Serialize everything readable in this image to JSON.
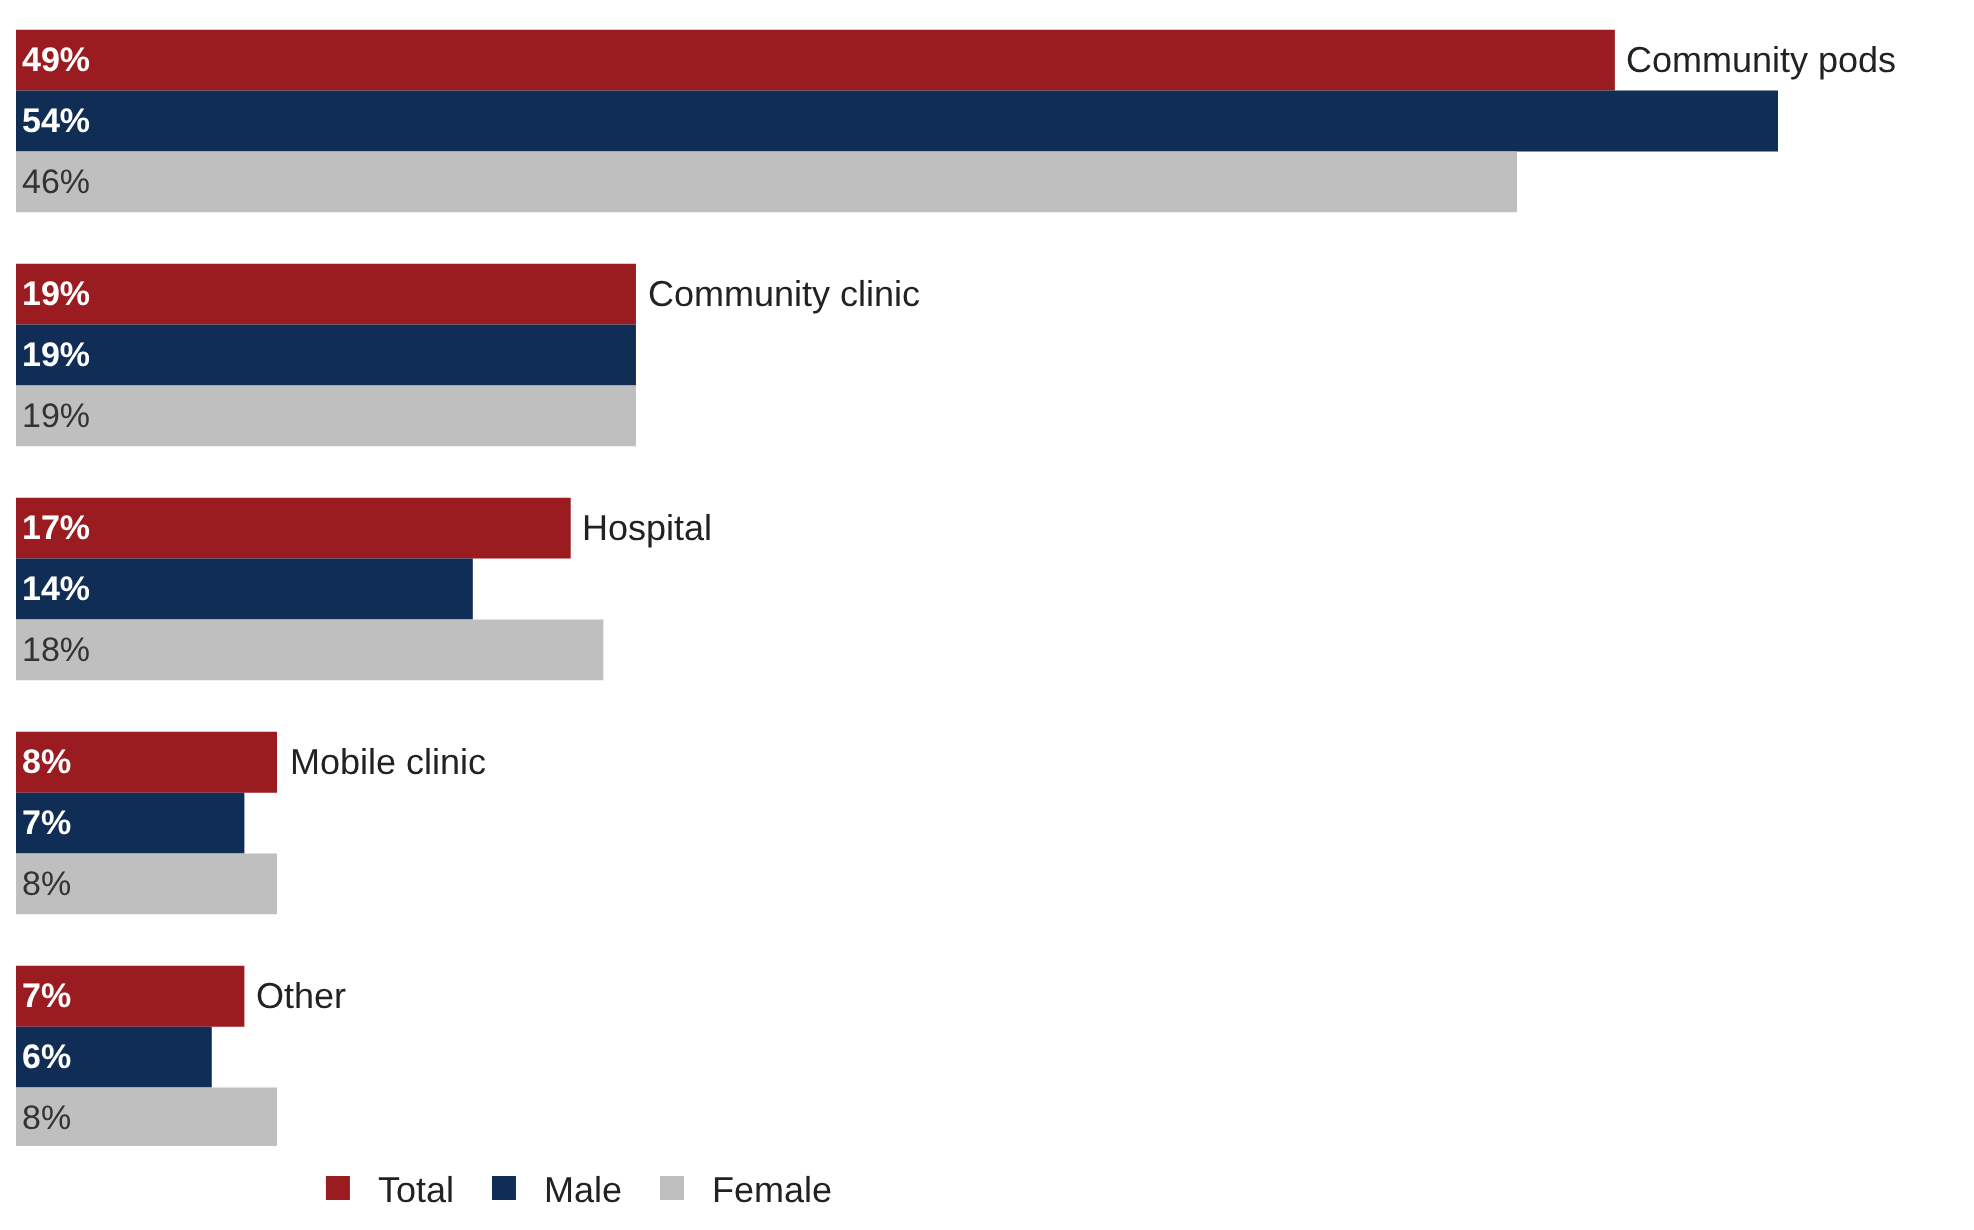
{
  "chart_data": {
    "type": "bar",
    "orientation": "horizontal",
    "categories": [
      "Community pods",
      "Community clinic",
      "Hospital",
      "Mobile clinic",
      "Other"
    ],
    "series": [
      {
        "name": "Total",
        "color": "#9b1c20",
        "values": [
          49,
          19,
          17,
          8,
          7
        ],
        "value_labels": [
          "49%",
          "19%",
          "17%",
          "8%",
          "7%"
        ]
      },
      {
        "name": "Male",
        "color": "#0f2d55",
        "values": [
          54,
          19,
          14,
          7,
          6
        ],
        "value_labels": [
          "54%",
          "19%",
          "14%",
          "7%",
          "6%"
        ]
      },
      {
        "name": "Female",
        "color": "#bfbfbf",
        "values": [
          46,
          19,
          18,
          8,
          8
        ],
        "value_labels": [
          "46%",
          "19%",
          "18%",
          "8%",
          "8%"
        ]
      }
    ],
    "legend": "bottom",
    "tick_labels": false
  }
}
